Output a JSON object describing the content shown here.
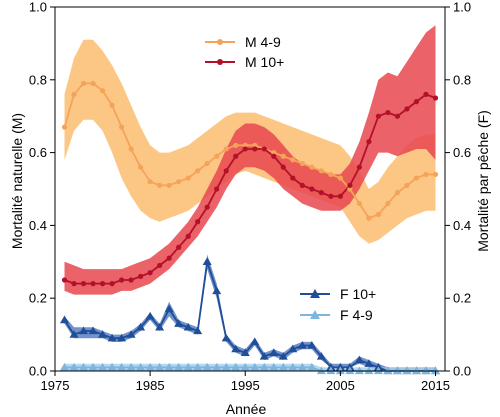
{
  "chart_data": {
    "type": "line",
    "title": "",
    "xlabel": "Année",
    "ylabel_left": "Mortalité naturelle (M)",
    "ylabel_right": "Mortalité par pêche (F)",
    "xlim": [
      1975,
      2016
    ],
    "ylim": [
      0,
      1.0
    ],
    "x_ticks": [
      1975,
      1985,
      1995,
      2005,
      2015
    ],
    "y_ticks": [
      0.0,
      0.2,
      0.4,
      0.6,
      0.8,
      1.0
    ],
    "y_tick_labels": [
      "0.0",
      "0.2",
      "0.4",
      "0.6",
      "0.8",
      "1.0"
    ],
    "grid": false,
    "legend_upper": {
      "position": "top-center",
      "entries": [
        "M 4-9",
        "M 10+"
      ]
    },
    "legend_lower": {
      "position": "center-right",
      "entries": [
        "F 10+",
        "F 4-9"
      ]
    },
    "x": [
      1976,
      1977,
      1978,
      1979,
      1980,
      1981,
      1982,
      1983,
      1984,
      1985,
      1986,
      1987,
      1988,
      1989,
      1990,
      1991,
      1992,
      1993,
      1994,
      1995,
      1996,
      1997,
      1998,
      1999,
      2000,
      2001,
      2002,
      2003,
      2004,
      2005,
      2006,
      2007,
      2008,
      2009,
      2010,
      2011,
      2012,
      2013,
      2014,
      2015
    ],
    "series": [
      {
        "name": "M 4-9",
        "color": "#f5a35a",
        "band_color": "#fbbd6f",
        "marker": "circle",
        "values": [
          0.67,
          0.76,
          0.79,
          0.79,
          0.77,
          0.73,
          0.67,
          0.61,
          0.56,
          0.52,
          0.51,
          0.51,
          0.52,
          0.53,
          0.55,
          0.57,
          0.59,
          0.61,
          0.62,
          0.62,
          0.62,
          0.61,
          0.6,
          0.59,
          0.58,
          0.57,
          0.56,
          0.55,
          0.54,
          0.53,
          0.5,
          0.46,
          0.42,
          0.43,
          0.46,
          0.49,
          0.51,
          0.53,
          0.54,
          0.54
        ],
        "lower": [
          0.58,
          0.66,
          0.69,
          0.69,
          0.66,
          0.6,
          0.53,
          0.48,
          0.44,
          0.42,
          0.41,
          0.42,
          0.43,
          0.44,
          0.46,
          0.48,
          0.5,
          0.52,
          0.54,
          0.55,
          0.54,
          0.53,
          0.52,
          0.51,
          0.5,
          0.49,
          0.48,
          0.47,
          0.46,
          0.45,
          0.41,
          0.37,
          0.35,
          0.36,
          0.38,
          0.4,
          0.42,
          0.43,
          0.44,
          0.44
        ],
        "upper": [
          0.76,
          0.86,
          0.91,
          0.91,
          0.88,
          0.84,
          0.79,
          0.73,
          0.67,
          0.62,
          0.6,
          0.6,
          0.61,
          0.62,
          0.64,
          0.66,
          0.68,
          0.7,
          0.71,
          0.71,
          0.71,
          0.7,
          0.69,
          0.68,
          0.67,
          0.66,
          0.65,
          0.64,
          0.63,
          0.62,
          0.59,
          0.55,
          0.5,
          0.52,
          0.56,
          0.59,
          0.62,
          0.64,
          0.65,
          0.65
        ]
      },
      {
        "name": "M 10+",
        "color": "#b3102a",
        "band_color": "#e8474e",
        "marker": "circle",
        "values": [
          0.25,
          0.24,
          0.24,
          0.24,
          0.24,
          0.24,
          0.25,
          0.25,
          0.26,
          0.27,
          0.29,
          0.31,
          0.34,
          0.37,
          0.41,
          0.45,
          0.5,
          0.55,
          0.59,
          0.61,
          0.61,
          0.61,
          0.59,
          0.56,
          0.53,
          0.51,
          0.5,
          0.49,
          0.48,
          0.48,
          0.51,
          0.56,
          0.63,
          0.7,
          0.71,
          0.7,
          0.72,
          0.74,
          0.76,
          0.75
        ],
        "lower": [
          0.22,
          0.21,
          0.21,
          0.21,
          0.21,
          0.21,
          0.22,
          0.22,
          0.23,
          0.24,
          0.26,
          0.28,
          0.31,
          0.34,
          0.37,
          0.41,
          0.45,
          0.5,
          0.54,
          0.56,
          0.56,
          0.55,
          0.53,
          0.5,
          0.48,
          0.46,
          0.45,
          0.44,
          0.44,
          0.44,
          0.46,
          0.5,
          0.55,
          0.6,
          0.6,
          0.59,
          0.6,
          0.61,
          0.61,
          0.58
        ],
        "upper": [
          0.3,
          0.29,
          0.28,
          0.28,
          0.28,
          0.28,
          0.28,
          0.29,
          0.3,
          0.31,
          0.33,
          0.35,
          0.38,
          0.41,
          0.45,
          0.5,
          0.55,
          0.61,
          0.66,
          0.68,
          0.68,
          0.67,
          0.65,
          0.62,
          0.59,
          0.57,
          0.56,
          0.55,
          0.54,
          0.54,
          0.57,
          0.63,
          0.71,
          0.8,
          0.82,
          0.81,
          0.85,
          0.89,
          0.93,
          0.95
        ]
      },
      {
        "name": "F 10+",
        "color": "#1f4e9a",
        "band_color": "#5b7fbf",
        "marker": "triangle",
        "values": [
          0.14,
          0.1,
          0.11,
          0.11,
          0.1,
          0.09,
          0.09,
          0.1,
          0.12,
          0.15,
          0.12,
          0.17,
          0.13,
          0.12,
          0.11,
          0.3,
          0.22,
          0.09,
          0.06,
          0.05,
          0.08,
          0.04,
          0.05,
          0.04,
          0.06,
          0.07,
          0.07,
          0.04,
          0.01,
          0.01,
          0.01,
          0.03,
          0.02,
          0.01,
          0.0,
          0.0,
          0.0,
          0.0,
          0.0,
          0.0
        ],
        "lower": [
          0.13,
          0.09,
          0.09,
          0.09,
          0.09,
          0.08,
          0.08,
          0.09,
          0.11,
          0.14,
          0.11,
          0.15,
          0.12,
          0.11,
          0.1,
          0.28,
          0.2,
          0.08,
          0.05,
          0.04,
          0.07,
          0.03,
          0.04,
          0.03,
          0.05,
          0.06,
          0.06,
          0.03,
          0.01,
          0.01,
          0.01,
          0.02,
          0.01,
          0.0,
          0.0,
          0.0,
          0.0,
          0.0,
          0.0,
          0.0
        ],
        "upper": [
          0.15,
          0.12,
          0.12,
          0.12,
          0.11,
          0.1,
          0.1,
          0.11,
          0.13,
          0.16,
          0.13,
          0.19,
          0.14,
          0.13,
          0.12,
          0.32,
          0.24,
          0.1,
          0.07,
          0.06,
          0.09,
          0.05,
          0.06,
          0.05,
          0.07,
          0.08,
          0.08,
          0.05,
          0.02,
          0.02,
          0.02,
          0.04,
          0.03,
          0.02,
          0.01,
          0.01,
          0.01,
          0.01,
          0.01,
          0.01
        ]
      },
      {
        "name": "F 4-9",
        "color": "#7cb6df",
        "band_color": "#a8d0ec",
        "marker": "triangle",
        "values": [
          0.01,
          0.01,
          0.01,
          0.01,
          0.01,
          0.01,
          0.01,
          0.01,
          0.01,
          0.01,
          0.01,
          0.01,
          0.01,
          0.01,
          0.01,
          0.01,
          0.01,
          0.01,
          0.01,
          0.01,
          0.01,
          0.01,
          0.01,
          0.01,
          0.01,
          0.01,
          0.01,
          0.0,
          0.0,
          0.0,
          0.0,
          0.0,
          0.0,
          0.0,
          0.0,
          0.0,
          0.0,
          0.0,
          0.0,
          0.0
        ],
        "lower": [
          0.0,
          0.0,
          0.0,
          0.0,
          0.0,
          0.0,
          0.0,
          0.0,
          0.0,
          0.0,
          0.0,
          0.0,
          0.0,
          0.0,
          0.0,
          0.0,
          0.0,
          0.0,
          0.0,
          0.0,
          0.0,
          0.0,
          0.0,
          0.0,
          0.0,
          0.0,
          0.0,
          0.0,
          0.0,
          0.0,
          0.0,
          0.0,
          0.0,
          0.0,
          0.0,
          0.0,
          0.0,
          0.0,
          0.0,
          0.0
        ],
        "upper": [
          0.02,
          0.02,
          0.02,
          0.02,
          0.02,
          0.02,
          0.02,
          0.02,
          0.02,
          0.02,
          0.02,
          0.02,
          0.02,
          0.02,
          0.02,
          0.02,
          0.02,
          0.02,
          0.02,
          0.02,
          0.02,
          0.02,
          0.02,
          0.02,
          0.02,
          0.02,
          0.02,
          0.01,
          0.01,
          0.01,
          0.01,
          0.01,
          0.01,
          0.01,
          0.01,
          0.01,
          0.01,
          0.01,
          0.01,
          0.01
        ]
      }
    ]
  }
}
